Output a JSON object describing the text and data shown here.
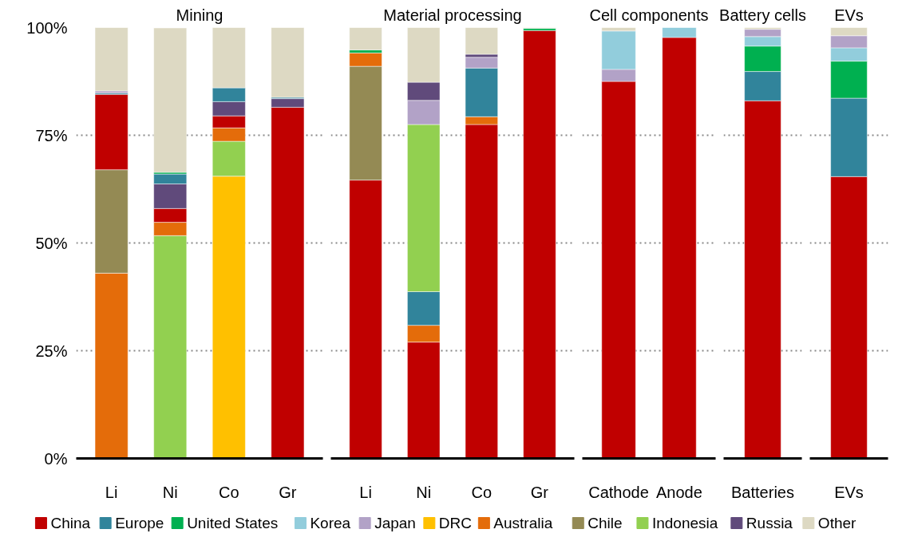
{
  "chart_data": [
    {
      "type": "bar",
      "stacked": true,
      "title": "Mining",
      "categories": [
        "Li",
        "Ni",
        "Co",
        "Gr"
      ],
      "ylim": [
        0,
        100
      ],
      "yticks": [
        {
          "value": 0,
          "label": "0%"
        },
        {
          "value": 25,
          "label": "25%"
        },
        {
          "value": 50,
          "label": "50%"
        },
        {
          "value": 75,
          "label": "75%"
        },
        {
          "value": 100,
          "label": "100%"
        }
      ],
      "grid": "y",
      "legend": "bottom",
      "series": [
        {
          "name": "DRC",
          "color": "#ffc000",
          "values": [
            null,
            null,
            65.5,
            null
          ]
        },
        {
          "name": "Indonesia",
          "color": "#92d050",
          "values": [
            null,
            51.7,
            8.1,
            null
          ]
        },
        {
          "name": "Australia",
          "color": "#e46c0a",
          "values": [
            43,
            3.1,
            3.1,
            null
          ]
        },
        {
          "name": "Chile",
          "color": "#948a54",
          "values": [
            24,
            null,
            null,
            null
          ]
        },
        {
          "name": "China",
          "color": "#c00000",
          "values": [
            17.5,
            3.2,
            2.8,
            81.5
          ]
        },
        {
          "name": "Russia",
          "color": "#604a7b",
          "values": [
            null,
            5.7,
            3.3,
            2
          ]
        },
        {
          "name": "Europe",
          "color": "#31849b",
          "values": [
            0.3,
            2.3,
            3.2,
            0.3
          ]
        },
        {
          "name": "United States",
          "color": "#00b050",
          "values": [
            null,
            0.4,
            null,
            null
          ]
        },
        {
          "name": "Japan",
          "color": "#b2a2c7",
          "values": [
            0.5,
            null,
            null,
            null
          ]
        },
        {
          "name": "Other",
          "color": "#ddd9c3",
          "values": [
            14.8,
            33.5,
            14,
            16.2
          ]
        }
      ]
    },
    {
      "type": "bar",
      "stacked": true,
      "title": "Material processing",
      "categories": [
        "Li",
        "Ni",
        "Co",
        "Gr"
      ],
      "ylim": [
        0,
        100
      ],
      "yticks": [
        0,
        25,
        50,
        75,
        100
      ],
      "tick_labels": "x",
      "grid": "y",
      "legend": "bottom",
      "series": [
        {
          "name": "China",
          "color": "#c00000",
          "values": [
            64.6,
            27,
            77.5,
            99.3
          ]
        },
        {
          "name": "Chile",
          "color": "#948a54",
          "values": [
            26.4,
            null,
            null,
            null
          ]
        },
        {
          "name": "Australia",
          "color": "#e46c0a",
          "values": [
            3.1,
            3.9,
            1.8,
            null
          ]
        },
        {
          "name": "Europe",
          "color": "#31849b",
          "values": [
            null,
            7.8,
            11.3,
            null
          ]
        },
        {
          "name": "Indonesia",
          "color": "#92d050",
          "values": [
            null,
            38.8,
            null,
            null
          ]
        },
        {
          "name": "United States",
          "color": "#00b050",
          "values": [
            0.7,
            null,
            null,
            0.5
          ]
        },
        {
          "name": "Japan",
          "color": "#b2a2c7",
          "values": [
            null,
            5.6,
            2.5,
            null
          ]
        },
        {
          "name": "Russia",
          "color": "#604a7b",
          "values": [
            null,
            4.2,
            0.7,
            null
          ]
        },
        {
          "name": "Other",
          "color": "#ddd9c3",
          "values": [
            5.2,
            12.7,
            6.2,
            0.2
          ]
        }
      ]
    },
    {
      "type": "bar",
      "stacked": true,
      "title": "Cell components",
      "categories": [
        "Cathode",
        "Anode"
      ],
      "ylim": [
        0,
        100
      ],
      "yticks": [
        0,
        25,
        50,
        75,
        100
      ],
      "tick_labels": "x",
      "grid": "y",
      "legend": "bottom",
      "series": [
        {
          "name": "China",
          "color": "#c00000",
          "values": [
            87.5,
            97.7
          ]
        },
        {
          "name": "Japan",
          "color": "#b2a2c7",
          "values": [
            2.8,
            null
          ]
        },
        {
          "name": "Korea",
          "color": "#92cddc",
          "values": [
            8.9,
            2.3
          ]
        },
        {
          "name": "Other",
          "color": "#ddd9c3",
          "values": [
            0.8,
            null
          ]
        }
      ]
    },
    {
      "type": "bar",
      "stacked": true,
      "title": "Battery cells",
      "categories": [
        "Batteries"
      ],
      "ylim": [
        0,
        100
      ],
      "yticks": [
        0,
        25,
        50,
        75,
        100
      ],
      "tick_labels": "x",
      "grid": "y",
      "legend": "bottom",
      "series": [
        {
          "name": "China",
          "color": "#c00000",
          "values": [
            83
          ]
        },
        {
          "name": "Europe",
          "color": "#31849b",
          "values": [
            6.8
          ]
        },
        {
          "name": "United States",
          "color": "#00b050",
          "values": [
            5.9
          ]
        },
        {
          "name": "Korea",
          "color": "#92cddc",
          "values": [
            2.2
          ]
        },
        {
          "name": "Japan",
          "color": "#b2a2c7",
          "values": [
            1.7
          ]
        },
        {
          "name": "Other",
          "color": "#ddd9c3",
          "values": [
            0.4
          ]
        }
      ]
    },
    {
      "type": "bar",
      "stacked": true,
      "title": "EVs",
      "categories": [
        "EVs"
      ],
      "ylim": [
        0,
        100
      ],
      "yticks": [
        0,
        25,
        50,
        75,
        100
      ],
      "tick_labels": "x",
      "grid": "y",
      "legend": "bottom",
      "series": [
        {
          "name": "China",
          "color": "#c00000",
          "values": [
            65.4
          ]
        },
        {
          "name": "Europe",
          "color": "#31849b",
          "values": [
            18.2
          ]
        },
        {
          "name": "United States",
          "color": "#00b050",
          "values": [
            8.6
          ]
        },
        {
          "name": "Korea",
          "color": "#92cddc",
          "values": [
            3.1
          ]
        },
        {
          "name": "Japan",
          "color": "#b2a2c7",
          "values": [
            2.8
          ]
        },
        {
          "name": "DRC",
          "color": "#ffc000",
          "values": [
            null
          ]
        },
        {
          "name": "Australia",
          "color": "#e46c0a",
          "values": [
            null
          ]
        },
        {
          "name": "Chile",
          "color": "#948a54",
          "values": [
            null
          ]
        },
        {
          "name": "Indonesia",
          "color": "#92d050",
          "values": [
            null
          ]
        },
        {
          "name": "Russia",
          "color": "#604a7b",
          "values": [
            null
          ]
        },
        {
          "name": "Other",
          "color": "#ddd9c3",
          "values": [
            1.9
          ]
        }
      ]
    }
  ]
}
